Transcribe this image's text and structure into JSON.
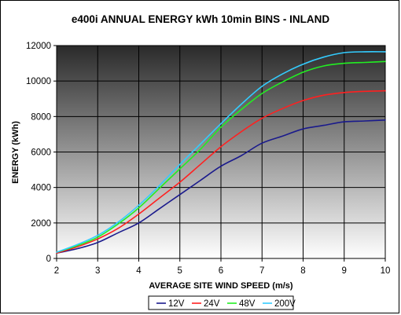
{
  "chart_data": {
    "type": "line",
    "title": "e400i ANNUAL ENERGY kWh 10min BINS - INLAND",
    "xlabel": "AVERAGE SITE WIND SPEED (m/s)",
    "ylabel": "ENERGY (kWh)",
    "xlim": [
      2,
      10
    ],
    "ylim": [
      0,
      12000
    ],
    "x_ticks": [
      "2",
      "3",
      "4",
      "5",
      "6",
      "7",
      "8",
      "9",
      "10"
    ],
    "y_ticks": [
      "0",
      "2000",
      "4000",
      "6000",
      "8000",
      "10000",
      "12000"
    ],
    "grid": true,
    "legend_position": "bottom",
    "background": "gradient dark-to-light grey",
    "x": [
      2,
      2.5,
      3,
      3.5,
      4,
      4.5,
      5,
      5.5,
      6,
      6.5,
      7,
      7.5,
      8,
      8.5,
      9,
      9.5,
      10
    ],
    "series": [
      {
        "name": "12V",
        "color": "#1a1a8c",
        "values": [
          300,
          550,
          900,
          1450,
          2000,
          2800,
          3600,
          4400,
          5200,
          5800,
          6500,
          6900,
          7300,
          7500,
          7700,
          7750,
          7800
        ]
      },
      {
        "name": "24V",
        "color": "#ff2020",
        "values": [
          300,
          650,
          1100,
          1700,
          2500,
          3400,
          4300,
          5300,
          6300,
          7150,
          7900,
          8450,
          8900,
          9200,
          9350,
          9420,
          9450
        ]
      },
      {
        "name": "48V",
        "color": "#22ee22",
        "values": [
          350,
          720,
          1200,
          1950,
          2850,
          3950,
          5050,
          6150,
          7400,
          8400,
          9300,
          9950,
          10500,
          10850,
          11000,
          11050,
          11100
        ]
      },
      {
        "name": "200V",
        "color": "#33ccff",
        "values": [
          350,
          780,
          1300,
          2050,
          3000,
          4100,
          5300,
          6450,
          7600,
          8700,
          9700,
          10400,
          10950,
          11350,
          11600,
          11650,
          11650
        ]
      }
    ]
  }
}
